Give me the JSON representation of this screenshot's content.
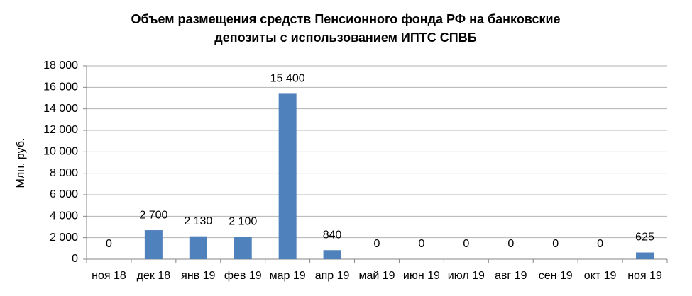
{
  "chart_data": {
    "type": "bar",
    "title": [
      "Объем размещения средств Пенсионного фонда РФ  на банковские",
      "депозиты с использованием ИПТС СПВБ"
    ],
    "y_label": "Млн. руб.",
    "categories": [
      "ноя 18",
      "дек 18",
      "янв 19",
      "фев 19",
      "мар 19",
      "апр 19",
      "май 19",
      "июн 19",
      "июл 19",
      "авг 19",
      "сен 19",
      "окт 19",
      "ноя 19"
    ],
    "values": [
      0,
      2700,
      2130,
      2100,
      15400,
      840,
      0,
      0,
      0,
      0,
      0,
      0,
      625
    ],
    "value_labels": [
      "0",
      "2 700",
      "2 130",
      "2 100",
      "15 400",
      "840",
      "0",
      "0",
      "0",
      "0",
      "0",
      "0",
      "625"
    ],
    "color": "#4f81bd",
    "ylim": [
      0,
      18000
    ],
    "yticks": [
      0,
      {
        "value": 2000,
        "label": "2 000"
      },
      {
        "value": 4000,
        "label": "4 000"
      },
      {
        "value": 6000,
        "label": "6 000"
      },
      {
        "value": 8000,
        "label": "8 000"
      },
      {
        "value": 10000,
        "label": "10 000"
      },
      {
        "value": 12000,
        "label": "12 000"
      },
      {
        "value": 14000,
        "label": "14 000"
      },
      {
        "value": 16000,
        "label": "16 000"
      },
      {
        "value": 18000,
        "label": "18 000"
      }
    ],
    "grid": true
  }
}
